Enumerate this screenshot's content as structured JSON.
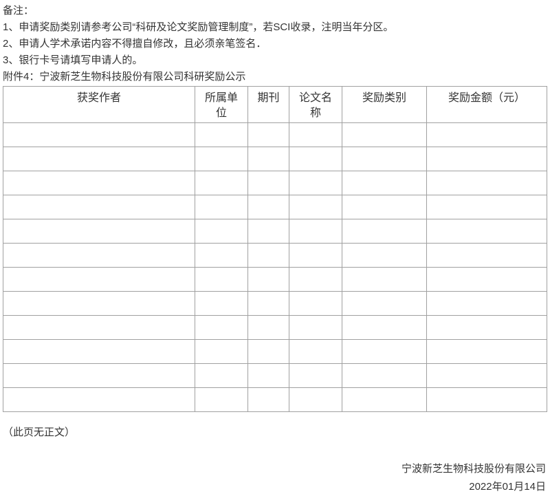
{
  "document": {
    "notes": {
      "label": "备注：",
      "items": [
        "1、申请奖励类别请参考公司“科研及论文奖励管理制度”，若SCI收录，注明当年分区。",
        "2、申请人学术承诺内容不得擅自修改，且必须亲笔签名．",
        "3、银行卡号请填写申请人的。"
      ]
    },
    "attachment_title": "附件4：宁波新芝生物科技股份有限公司科研奖励公示",
    "table": {
      "headers": [
        "获奖作者",
        "所属单位",
        "期刊",
        "论文名称",
        "奖励类别",
        "奖励金额（元）"
      ],
      "empty_row_count": 12
    },
    "closing_note": "（此页无正文）",
    "signature": {
      "company": "宁波新芝生物科技股份有限公司",
      "date": "2022年01月14日"
    },
    "colors": {
      "text": "#333333",
      "table_border": "#a0a0a0",
      "background": "#ffffff"
    }
  }
}
